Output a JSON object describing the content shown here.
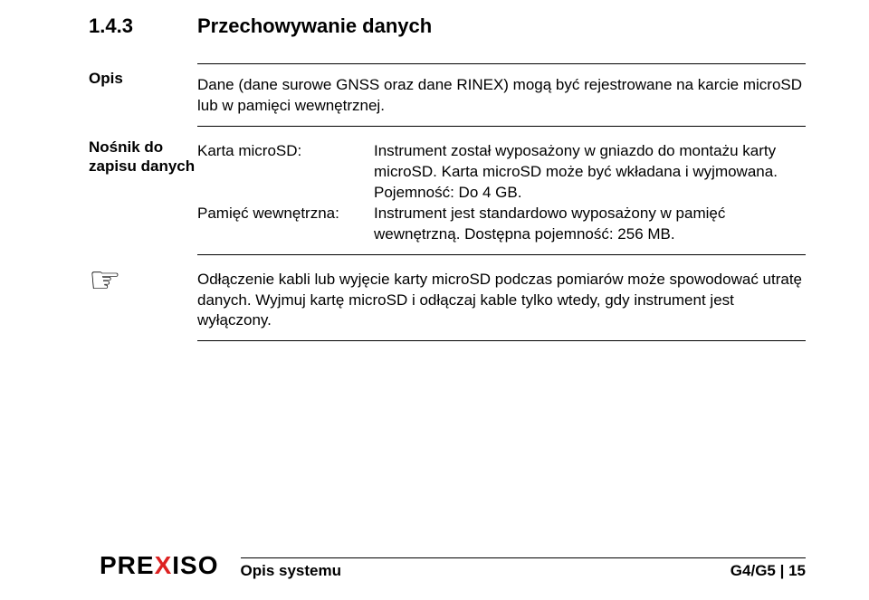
{
  "heading": {
    "number": "1.4.3",
    "title": "Przechowywanie danych"
  },
  "section1": {
    "label": "Opis",
    "text": "Dane (dane surowe GNSS oraz dane RINEX) mogą być rejestrowane na karcie microSD lub w pamięci wewnętrznej."
  },
  "section2": {
    "label": "Nośnik do zapisu danych",
    "defs": [
      {
        "label": "Karta microSD:",
        "text": "Instrument został wyposażony w gniazdo do montażu karty microSD. Karta microSD może być wkładana i wyjmowana. Pojemność: Do 4 GB."
      },
      {
        "label": "Pamięć wewnętrzna:",
        "text": "Instrument jest standardowo wyposażony w pamięć wewnętrzną. Dostępna pojemność: 256 MB."
      }
    ]
  },
  "note": {
    "text": "Odłączenie kabli lub wyjęcie karty microSD podczas pomiarów może spowodować utratę danych. Wyjmuj kartę microSD i odłączaj kable tylko wtedy, gdy instrument jest wyłączony."
  },
  "footer": {
    "brand_pre": "PRE",
    "brand_x": "X",
    "brand_post": "ISO",
    "section": "Opis systemu",
    "page": "G4/G5 | 15"
  },
  "colors": {
    "text": "#000000",
    "accent": "#d22",
    "background": "#ffffff",
    "rule": "#000000"
  }
}
